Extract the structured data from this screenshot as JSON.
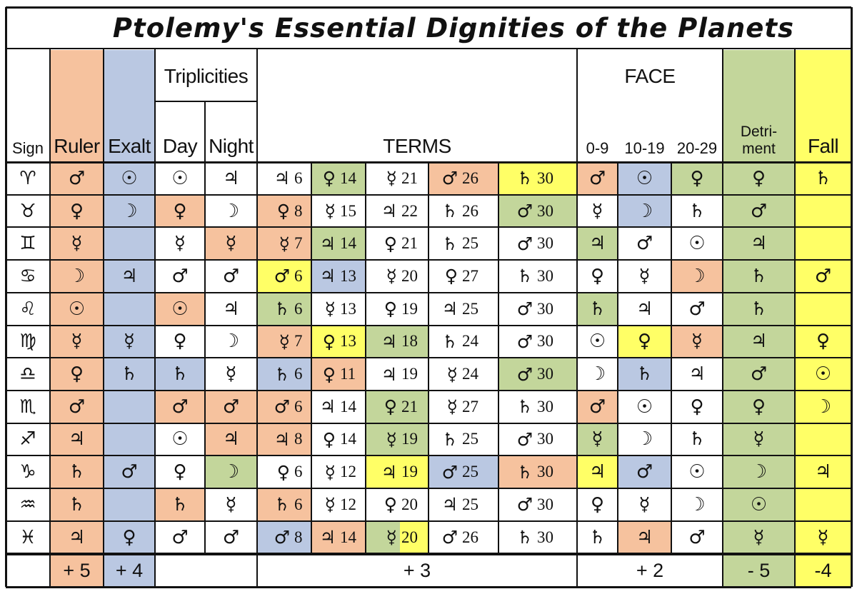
{
  "title": "Ptolemy's Essential Dignities of the Planets",
  "colors": {
    "orange": "#f6c29e",
    "blue": "#bac8e2",
    "green": "#c3d69b",
    "yellow": "#ffff66",
    "white": "#ffffff",
    "ink": "#111111"
  },
  "headers": {
    "sign": "Sign",
    "ruler": "Ruler",
    "exalt": "Exalt",
    "triplicities": "Triplicities",
    "day": "Day",
    "night": "Night",
    "terms": "TERMS",
    "face": "FACE",
    "face_0_9": "0-9",
    "face_10_19": "10-19",
    "face_20_29": "20-29",
    "detriment": "Detri-\nment",
    "fall": "Fall"
  },
  "rows": [
    {
      "sign": "♈",
      "ruler": "♂",
      "exalt": "☉",
      "day": "☉",
      "night": "♃",
      "terms": [
        {
          "p": "♃",
          "n": "6"
        },
        {
          "p": "♀",
          "n": "14"
        },
        {
          "p": "☿",
          "n": "21"
        },
        {
          "p": "♂",
          "n": "26"
        },
        {
          "p": "♄",
          "n": "30"
        }
      ],
      "face": [
        "♂",
        "☉",
        "♀"
      ],
      "detriment": "♀",
      "fall": "♄"
    },
    {
      "sign": "♉",
      "ruler": "♀",
      "exalt": "☽",
      "day": "♀",
      "night": "☽",
      "terms": [
        {
          "p": "♀",
          "n": "8"
        },
        {
          "p": "☿",
          "n": "15"
        },
        {
          "p": "♃",
          "n": "22"
        },
        {
          "p": "♄",
          "n": "26"
        },
        {
          "p": "♂",
          "n": "30"
        }
      ],
      "face": [
        "☿",
        "☽",
        "♄"
      ],
      "detriment": "♂",
      "fall": ""
    },
    {
      "sign": "♊",
      "ruler": "☿",
      "exalt": "",
      "day": "☿",
      "night": "☿",
      "terms": [
        {
          "p": "☿",
          "n": "7"
        },
        {
          "p": "♃",
          "n": "14"
        },
        {
          "p": "♀",
          "n": "21"
        },
        {
          "p": "♄",
          "n": "25"
        },
        {
          "p": "♂",
          "n": "30"
        }
      ],
      "face": [
        "♃",
        "♂",
        "☉"
      ],
      "detriment": "♃",
      "fall": ""
    },
    {
      "sign": "♋",
      "ruler": "☽",
      "exalt": "♃",
      "day": "♂",
      "night": "♂",
      "terms": [
        {
          "p": "♂",
          "n": "6"
        },
        {
          "p": "♃",
          "n": "13"
        },
        {
          "p": "☿",
          "n": "20"
        },
        {
          "p": "♀",
          "n": "27"
        },
        {
          "p": "♄",
          "n": "30"
        }
      ],
      "face": [
        "♀",
        "☿",
        "☽"
      ],
      "detriment": "♄",
      "fall": "♂"
    },
    {
      "sign": "♌",
      "ruler": "☉",
      "exalt": "",
      "day": "☉",
      "night": "♃",
      "terms": [
        {
          "p": "♄",
          "n": "6"
        },
        {
          "p": "☿",
          "n": "13"
        },
        {
          "p": "♀",
          "n": "19"
        },
        {
          "p": "♃",
          "n": "25"
        },
        {
          "p": "♂",
          "n": "30"
        }
      ],
      "face": [
        "♄",
        "♃",
        "♂"
      ],
      "detriment": "♄",
      "fall": ""
    },
    {
      "sign": "♍",
      "ruler": "☿",
      "exalt": "☿",
      "day": "♀",
      "night": "☽",
      "terms": [
        {
          "p": "☿",
          "n": "7"
        },
        {
          "p": "♀",
          "n": "13"
        },
        {
          "p": "♃",
          "n": "18"
        },
        {
          "p": "♄",
          "n": "24"
        },
        {
          "p": "♂",
          "n": "30"
        }
      ],
      "face": [
        "☉",
        "♀",
        "☿"
      ],
      "detriment": "♃",
      "fall": "♀"
    },
    {
      "sign": "♎",
      "ruler": "♀",
      "exalt": "♄",
      "day": "♄",
      "night": "☿",
      "terms": [
        {
          "p": "♄",
          "n": "6"
        },
        {
          "p": "♀",
          "n": "11"
        },
        {
          "p": "♃",
          "n": "19"
        },
        {
          "p": "☿",
          "n": "24"
        },
        {
          "p": "♂",
          "n": "30"
        }
      ],
      "face": [
        "☽",
        "♄",
        "♃"
      ],
      "detriment": "♂",
      "fall": "☉"
    },
    {
      "sign": "♏",
      "ruler": "♂",
      "exalt": "",
      "day": "♂",
      "night": "♂",
      "terms": [
        {
          "p": "♂",
          "n": "6"
        },
        {
          "p": "♃",
          "n": "14"
        },
        {
          "p": "♀",
          "n": "21"
        },
        {
          "p": "☿",
          "n": "27"
        },
        {
          "p": "♄",
          "n": "30"
        }
      ],
      "face": [
        "♂",
        "☉",
        "♀"
      ],
      "detriment": "♀",
      "fall": "☽"
    },
    {
      "sign": "♐",
      "ruler": "♃",
      "exalt": "",
      "day": "☉",
      "night": "♃",
      "terms": [
        {
          "p": "♃",
          "n": "8"
        },
        {
          "p": "♀",
          "n": "14"
        },
        {
          "p": "☿",
          "n": "19"
        },
        {
          "p": "♄",
          "n": "25"
        },
        {
          "p": "♂",
          "n": "30"
        }
      ],
      "face": [
        "☿",
        "☽",
        "♄"
      ],
      "detriment": "☿",
      "fall": ""
    },
    {
      "sign": "♑",
      "ruler": "♄",
      "exalt": "♂",
      "day": "♀",
      "night": "☽",
      "terms": [
        {
          "p": "♀",
          "n": "6"
        },
        {
          "p": "☿",
          "n": "12"
        },
        {
          "p": "♃",
          "n": "19"
        },
        {
          "p": "♂",
          "n": "25"
        },
        {
          "p": "♄",
          "n": "30"
        }
      ],
      "face": [
        "♃",
        "♂",
        "☉"
      ],
      "detriment": "☽",
      "fall": "♃"
    },
    {
      "sign": "♒",
      "ruler": "♄",
      "exalt": "",
      "day": "♄",
      "night": "☿",
      "terms": [
        {
          "p": "♄",
          "n": "6"
        },
        {
          "p": "☿",
          "n": "12"
        },
        {
          "p": "♀",
          "n": "20"
        },
        {
          "p": "♃",
          "n": "25"
        },
        {
          "p": "♂",
          "n": "30"
        }
      ],
      "face": [
        "♀",
        "☿",
        "☽"
      ],
      "detriment": "☉",
      "fall": ""
    },
    {
      "sign": "♓",
      "ruler": "♃",
      "exalt": "♀",
      "day": "♂",
      "night": "♂",
      "terms": [
        {
          "p": "♂",
          "n": "8"
        },
        {
          "p": "♃",
          "n": "14"
        },
        {
          "p": "☿",
          "n": "20"
        },
        {
          "p": "♂",
          "n": "26"
        },
        {
          "p": "♄",
          "n": "30"
        }
      ],
      "face": [
        "♄",
        "♃",
        "♂"
      ],
      "detriment": "☿",
      "fall": "☿"
    }
  ],
  "footer": {
    "ruler": "+ 5",
    "exalt": "+ 4",
    "terms": "+ 3",
    "face": "+ 2",
    "detriment": "- 5",
    "fall": "-4"
  }
}
